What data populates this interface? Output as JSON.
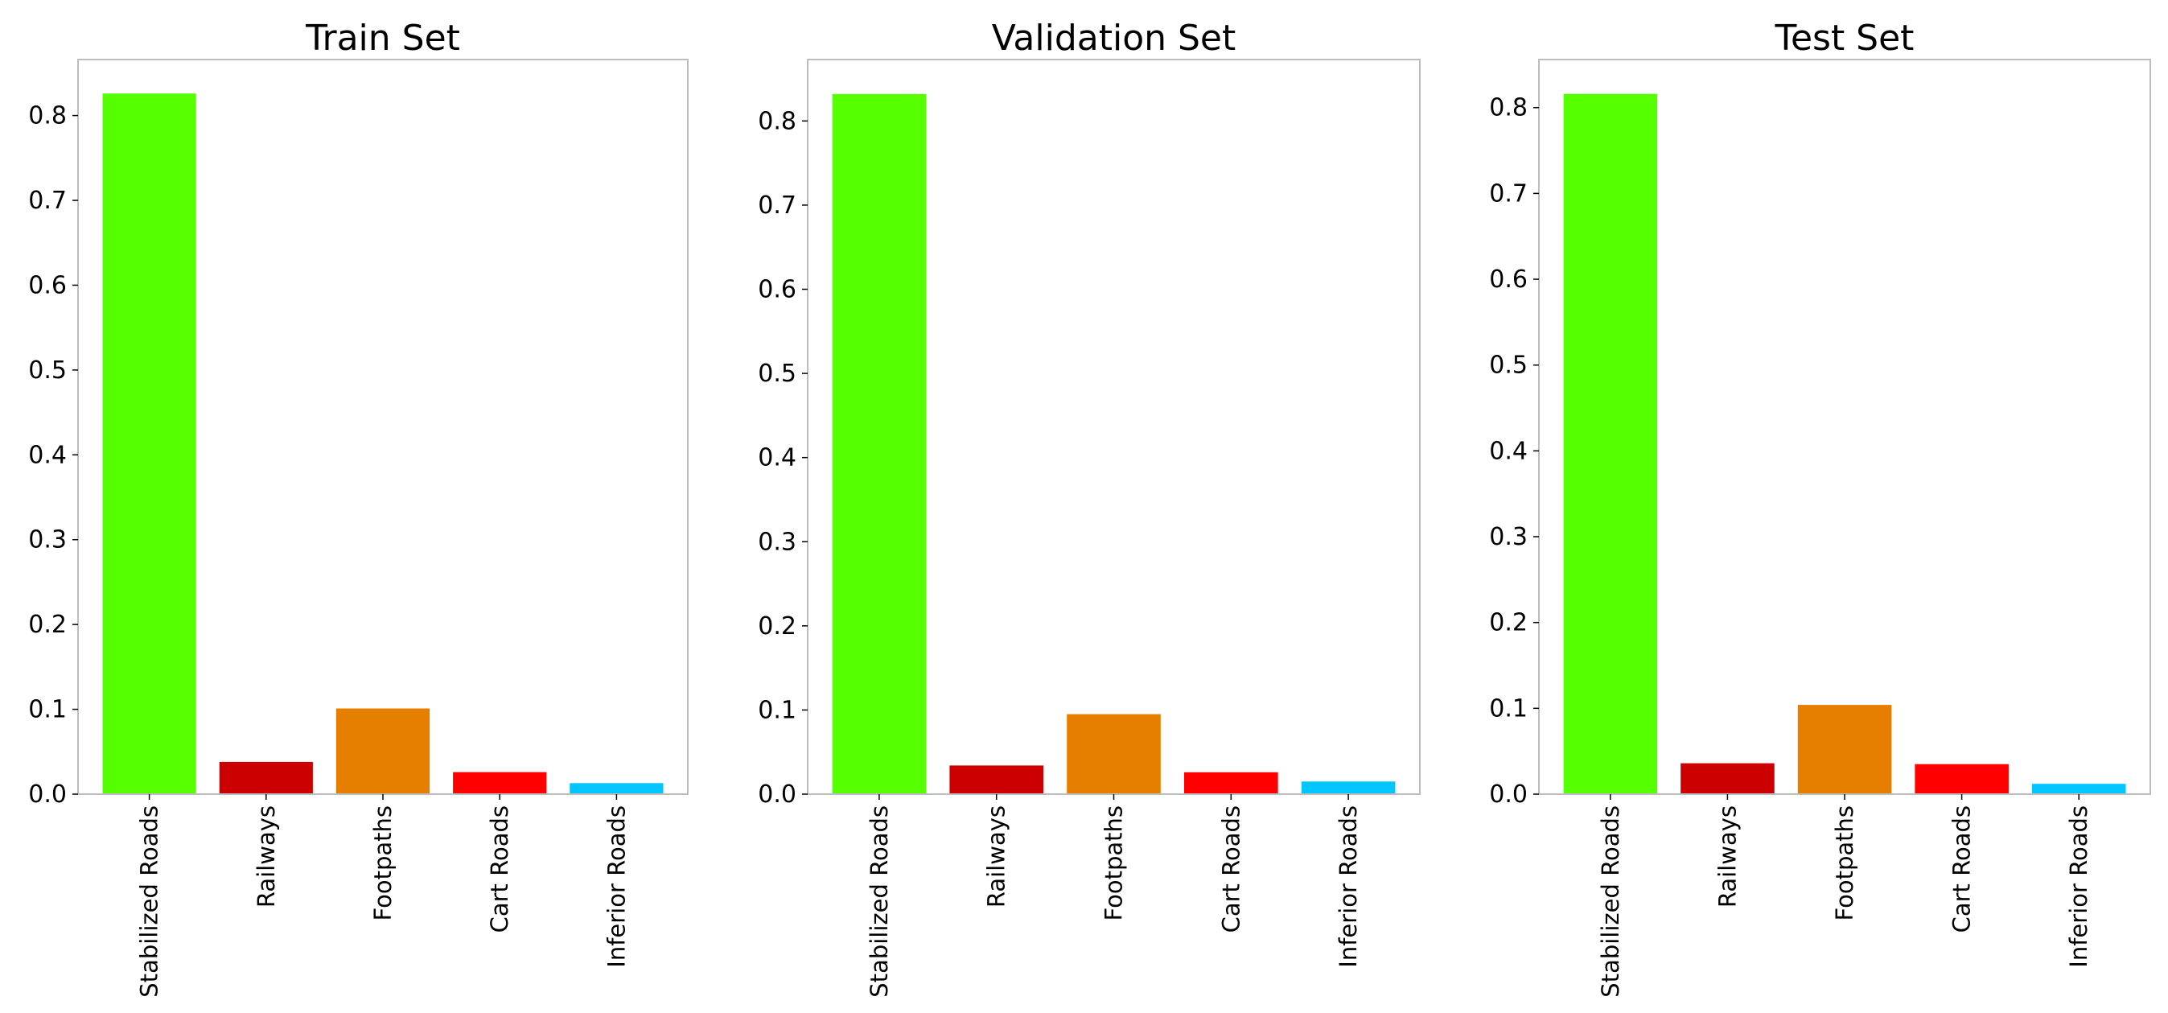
{
  "chart_data": [
    {
      "type": "bar",
      "title": "Train Set",
      "categories": [
        "Stabilized Roads",
        "Railways",
        "Footpaths",
        "Cart Roads",
        "Inferior Roads"
      ],
      "values": [
        0.826,
        0.038,
        0.101,
        0.026,
        0.013
      ],
      "colors": [
        "#55ff00",
        "#cc0000",
        "#e67e00",
        "#ff0000",
        "#00c5ff"
      ],
      "yticks": [
        "0.0",
        "0.1",
        "0.2",
        "0.3",
        "0.4",
        "0.5",
        "0.6",
        "0.7",
        "0.8"
      ],
      "ylim": [
        0,
        0.866
      ],
      "xlabel": "",
      "ylabel": ""
    },
    {
      "type": "bar",
      "title": "Validation Set",
      "categories": [
        "Stabilized Roads",
        "Railways",
        "Footpaths",
        "Cart Roads",
        "Inferior Roads"
      ],
      "values": [
        0.832,
        0.034,
        0.095,
        0.026,
        0.015
      ],
      "colors": [
        "#55ff00",
        "#cc0000",
        "#e67e00",
        "#ff0000",
        "#00c5ff"
      ],
      "yticks": [
        "0.0",
        "0.1",
        "0.2",
        "0.3",
        "0.4",
        "0.5",
        "0.6",
        "0.7",
        "0.8"
      ],
      "ylim": [
        0,
        0.873
      ],
      "xlabel": "",
      "ylabel": ""
    },
    {
      "type": "bar",
      "title": "Test Set",
      "categories": [
        "Stabilized Roads",
        "Railways",
        "Footpaths",
        "Cart Roads",
        "Inferior Roads"
      ],
      "values": [
        0.816,
        0.036,
        0.104,
        0.035,
        0.012
      ],
      "colors": [
        "#55ff00",
        "#cc0000",
        "#e67e00",
        "#ff0000",
        "#00c5ff"
      ],
      "yticks": [
        "0.0",
        "0.1",
        "0.2",
        "0.3",
        "0.4",
        "0.5",
        "0.6",
        "0.7",
        "0.8"
      ],
      "ylim": [
        0,
        0.856
      ],
      "xlabel": "",
      "ylabel": ""
    }
  ]
}
